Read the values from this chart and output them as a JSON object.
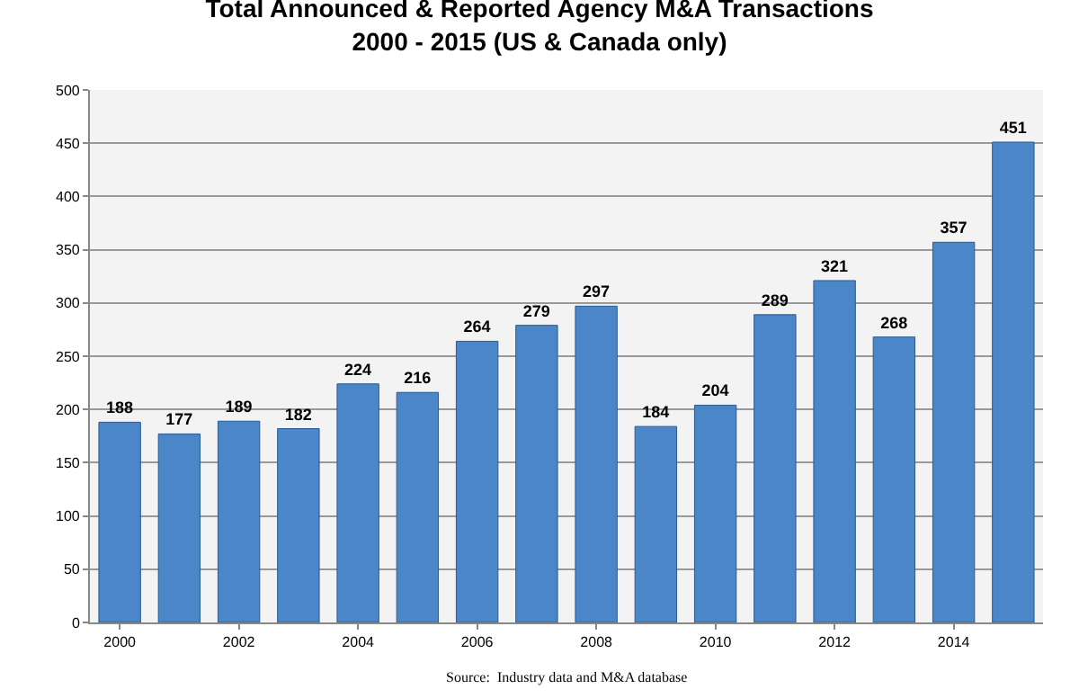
{
  "chart_data": {
    "type": "bar",
    "title": "Total Announced & Reported Agency M&A Transactions\n2000 - 2015 (US & Canada only)",
    "categories": [
      "2000",
      null,
      "2002",
      null,
      "2004",
      null,
      "2006",
      null,
      "2008",
      null,
      "2010",
      null,
      "2012",
      null,
      "2014",
      null
    ],
    "values": [
      188,
      177,
      189,
      182,
      224,
      216,
      264,
      279,
      297,
      184,
      204,
      289,
      321,
      268,
      357,
      451
    ],
    "color": "#4a86c8",
    "data_labels": true,
    "grid": "y",
    "ylim": [
      0,
      500
    ],
    "yticks": [
      0,
      50,
      100,
      150,
      200,
      250,
      300,
      350,
      400,
      450,
      500
    ],
    "annotations": [
      "Source:  Industry data and M&A database"
    ]
  }
}
